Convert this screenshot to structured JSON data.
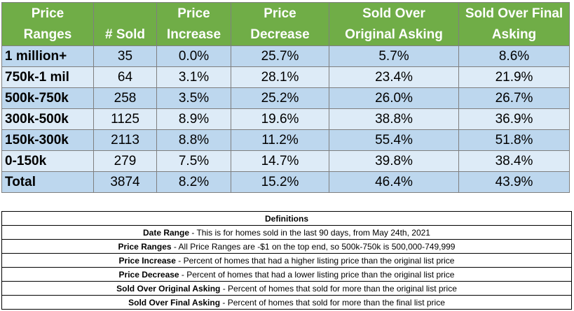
{
  "table": {
    "headers": [
      [
        "Price",
        "Ranges"
      ],
      [
        "# Sold"
      ],
      [
        "Price",
        "Increase"
      ],
      [
        "Price",
        "Decrease"
      ],
      [
        "Sold Over",
        "Original Asking"
      ],
      [
        "Sold Over Final",
        "Asking"
      ]
    ],
    "rows": [
      [
        "1 million+",
        "35",
        "0.0%",
        "25.7%",
        "5.7%",
        "8.6%"
      ],
      [
        "750k-1 mil",
        "64",
        "3.1%",
        "28.1%",
        "23.4%",
        "21.9%"
      ],
      [
        "500k-750k",
        "258",
        "3.5%",
        "25.2%",
        "26.0%",
        "26.7%"
      ],
      [
        "300k-500k",
        "1125",
        "8.9%",
        "19.6%",
        "38.8%",
        "36.9%"
      ],
      [
        "150k-300k",
        "2113",
        "8.8%",
        "11.2%",
        "55.4%",
        "51.8%"
      ],
      [
        "0-150k",
        "279",
        "7.5%",
        "14.7%",
        "39.8%",
        "38.4%"
      ],
      [
        "Total",
        "3874",
        "8.2%",
        "15.2%",
        "46.4%",
        "43.9%"
      ]
    ]
  },
  "definitions": {
    "title": "Definitions",
    "items": [
      {
        "term": "Date Range",
        "text": " - This is for homes sold in the last 90 days, from May 24th, 2021"
      },
      {
        "term": "Price Ranges",
        "text": " - All Price Ranges are -$1 on the top end, so 500k-750k is 500,000-749,999"
      },
      {
        "term": "Price Increase",
        "text": " - Percent of homes that had a higher listing price than the original list price"
      },
      {
        "term": "Price Decrease",
        "text": " - Percent of homes that had a lower listing price than the original list price"
      },
      {
        "term": "Sold Over Original Asking",
        "text": " - Percent of homes that sold for more than the original list price"
      },
      {
        "term": "Sold Over Final Asking",
        "text": " - Percent of homes that sold for more than the final list price"
      }
    ]
  },
  "colors": {
    "header_bg": "#70ad47",
    "header_text": "#ffffff",
    "row_dark": "#bdd7ee",
    "row_light": "#ddebf7"
  }
}
